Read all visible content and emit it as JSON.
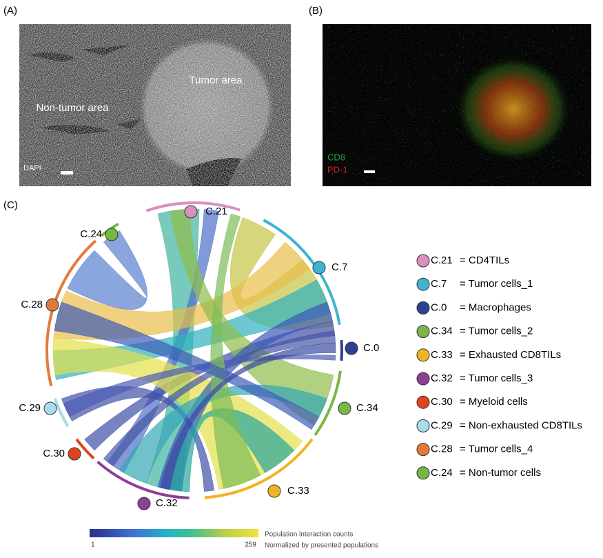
{
  "panels": {
    "a": {
      "label": "(A)",
      "annotations": [
        "Tumor area",
        "Non-tumor area"
      ],
      "stain": "DAPI"
    },
    "b": {
      "label": "(B)",
      "stains": [
        {
          "name": "CD8",
          "color": "#1fa34a"
        },
        {
          "name": "PD-1",
          "color": "#d81e1e"
        }
      ]
    },
    "c": {
      "label": "(C)",
      "populations": [
        {
          "id": "C.21",
          "description": "= CD4TILs",
          "color": "#d98fc0"
        },
        {
          "id": "C.7",
          "description": "= Tumor cells_1",
          "color": "#3fb4cf"
        },
        {
          "id": "C.0",
          "description": "= Macrophages",
          "color": "#2e3f96"
        },
        {
          "id": "C.34",
          "description": "= Tumor cells_2",
          "color": "#7ab648"
        },
        {
          "id": "C.33",
          "description": "= Exhausted CD8TILs",
          "color": "#f0b323"
        },
        {
          "id": "C.32",
          "description": "= Tumor cells_3",
          "color": "#8e3f97"
        },
        {
          "id": "C.30",
          "description": "= Myeloid cells",
          "color": "#e0441e"
        },
        {
          "id": "C.29",
          "description": "= Non-exhausted CD8TILs",
          "color": "#a9dbe8"
        },
        {
          "id": "C.28",
          "description": "= Tumor cells_4",
          "color": "#e27a3b"
        },
        {
          "id": "C.24",
          "description": "= Non-tumor cells",
          "color": "#74b843"
        }
      ],
      "colorbar": {
        "min": 1,
        "max": 259,
        "title": "Population interaction counts",
        "subtitle": "Normalized by presented populations"
      }
    }
  }
}
